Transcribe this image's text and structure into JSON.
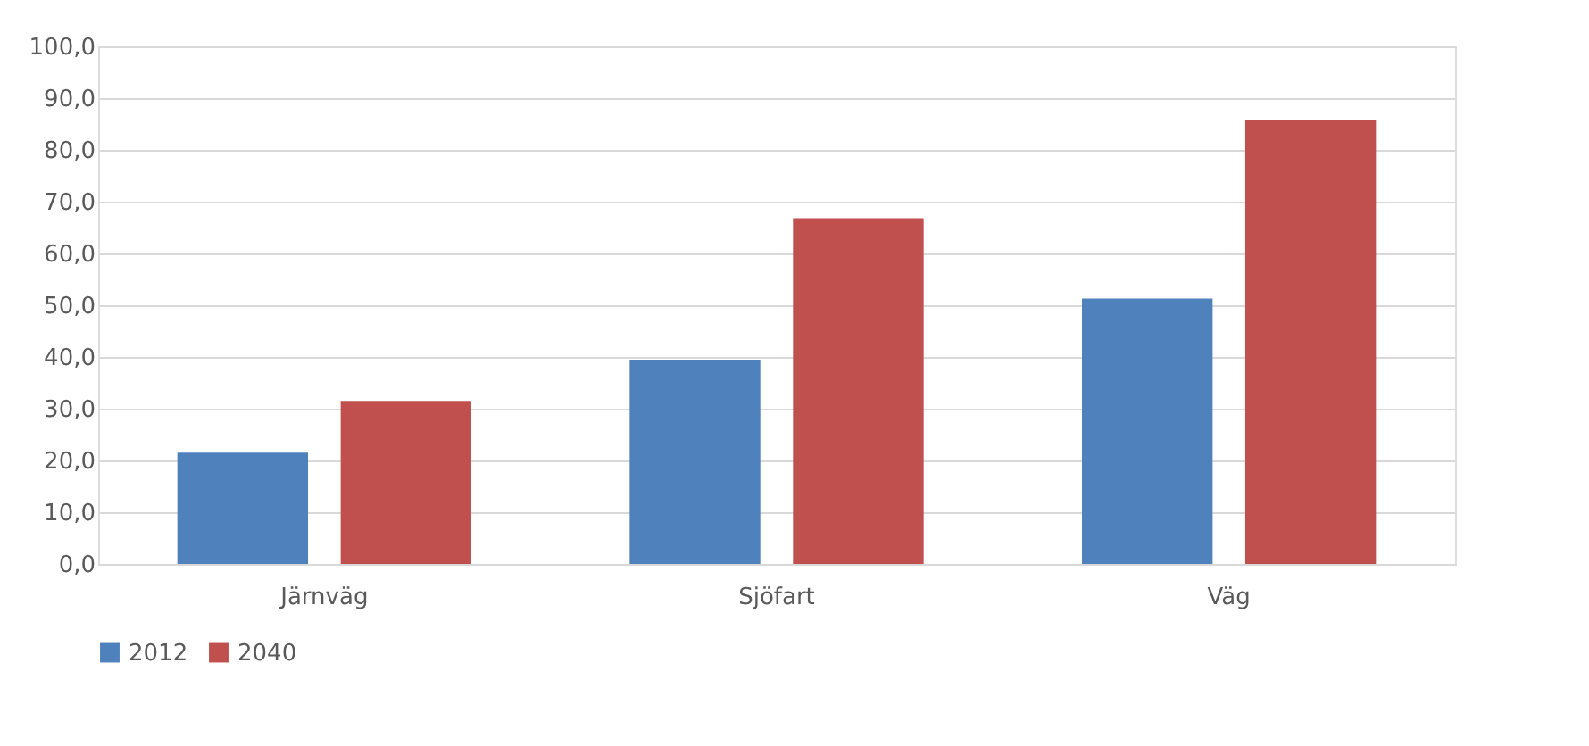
{
  "chart_data": {
    "type": "bar",
    "categories": [
      "Järnväg",
      "Sjöfart",
      "Väg"
    ],
    "series": [
      {
        "name": "2012",
        "color": "#4f81bd",
        "values": [
          21.5,
          39.5,
          51.3
        ]
      },
      {
        "name": "2040",
        "color": "#c0504d",
        "values": [
          31.5,
          66.8,
          85.7
        ]
      }
    ],
    "ylim": [
      0,
      100
    ],
    "yticks": [
      {
        "value": 0,
        "label": "0,0"
      },
      {
        "value": 10,
        "label": "10,0"
      },
      {
        "value": 20,
        "label": "20,0"
      },
      {
        "value": 30,
        "label": "30,0"
      },
      {
        "value": 40,
        "label": "40,0"
      },
      {
        "value": 50,
        "label": "50,0"
      },
      {
        "value": 60,
        "label": "60,0"
      },
      {
        "value": 70,
        "label": "70,0"
      },
      {
        "value": 80,
        "label": "80,0"
      },
      {
        "value": 90,
        "label": "90,0"
      },
      {
        "value": 100,
        "label": "100,0"
      }
    ],
    "grid": "y",
    "legend": "bottom"
  }
}
